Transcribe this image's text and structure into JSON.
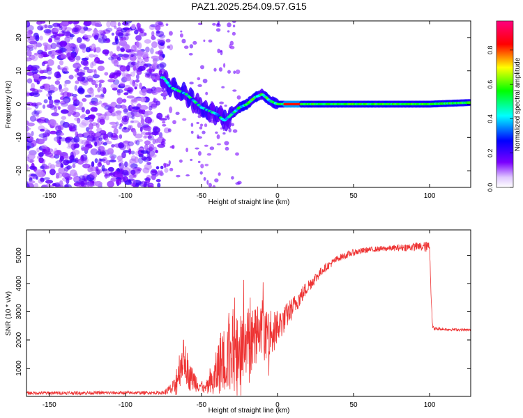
{
  "title": "PAZ1.2025.254.09.57.G15",
  "chart_data": [
    {
      "type": "heatmap",
      "name": "spectrogram",
      "xlabel": "Height of straight line (km)",
      "ylabel": "Frequency (Hz)",
      "xlim": [
        -165,
        127
      ],
      "ylim": [
        -25,
        25
      ],
      "xticks": [
        -150,
        -100,
        -50,
        0,
        50,
        100
      ],
      "yticks": [
        -20,
        -10,
        0,
        10,
        20
      ],
      "colorbar": {
        "label": "Normalized spectral amplitude",
        "range": [
          0.0,
          0.97
        ],
        "ticks": [
          0.0,
          0.2,
          0.4,
          0.6,
          0.8
        ],
        "colors": [
          "#ffffff",
          "#7b00ff",
          "#0000ff",
          "#00ffff",
          "#00ff00",
          "#ffff00",
          "#ff0000",
          "#ff0080"
        ]
      },
      "ridge": {
        "x": [
          -75,
          -70,
          -65,
          -60,
          -55,
          -50,
          -45,
          -40,
          -35,
          -30,
          -25,
          -20,
          -15,
          -10,
          -5,
          0,
          10,
          20,
          40,
          60,
          80,
          100,
          127
        ],
        "y": [
          8,
          5,
          4,
          3,
          1,
          -1,
          -2,
          -3,
          -5,
          -3,
          -1,
          0,
          2,
          3,
          1,
          0,
          0,
          0,
          0,
          0,
          0,
          0,
          0.5
        ]
      },
      "peak_region_x": [
        5,
        15
      ]
    },
    {
      "type": "line",
      "name": "snr",
      "xlabel": "Height of straight line (km)",
      "ylabel": "SNR (10 * v/v)",
      "xlim": [
        -165,
        127
      ],
      "ylim": [
        0,
        5900
      ],
      "xticks": [
        -150,
        -100,
        -50,
        0,
        50,
        100
      ],
      "yticks": [
        1000,
        2000,
        3000,
        4000,
        5000
      ],
      "color": "#ee3333",
      "envelope": {
        "x": [
          -165,
          -75,
          -68,
          -66,
          -62,
          -58,
          -52,
          -48,
          -42,
          -38,
          -33,
          -28,
          -22,
          -15,
          -8,
          -2,
          4,
          12,
          20,
          30,
          40,
          50,
          60,
          75,
          90,
          100,
          101,
          102,
          103,
          110,
          127
        ],
        "base": [
          120,
          130,
          300,
          700,
          1400,
          700,
          450,
          250,
          500,
          1200,
          1400,
          1600,
          1900,
          2100,
          2200,
          2300,
          2700,
          3300,
          3900,
          4500,
          4900,
          5100,
          5200,
          5250,
          5300,
          5300,
          3500,
          2450,
          2400,
          2380,
          2350
        ],
        "noise": [
          60,
          60,
          300,
          700,
          700,
          500,
          300,
          150,
          600,
          1100,
          1300,
          1400,
          1300,
          1200,
          900,
          700,
          500,
          350,
          250,
          150,
          120,
          120,
          100,
          100,
          150,
          200,
          100,
          80,
          60,
          50,
          50
        ]
      }
    }
  ]
}
